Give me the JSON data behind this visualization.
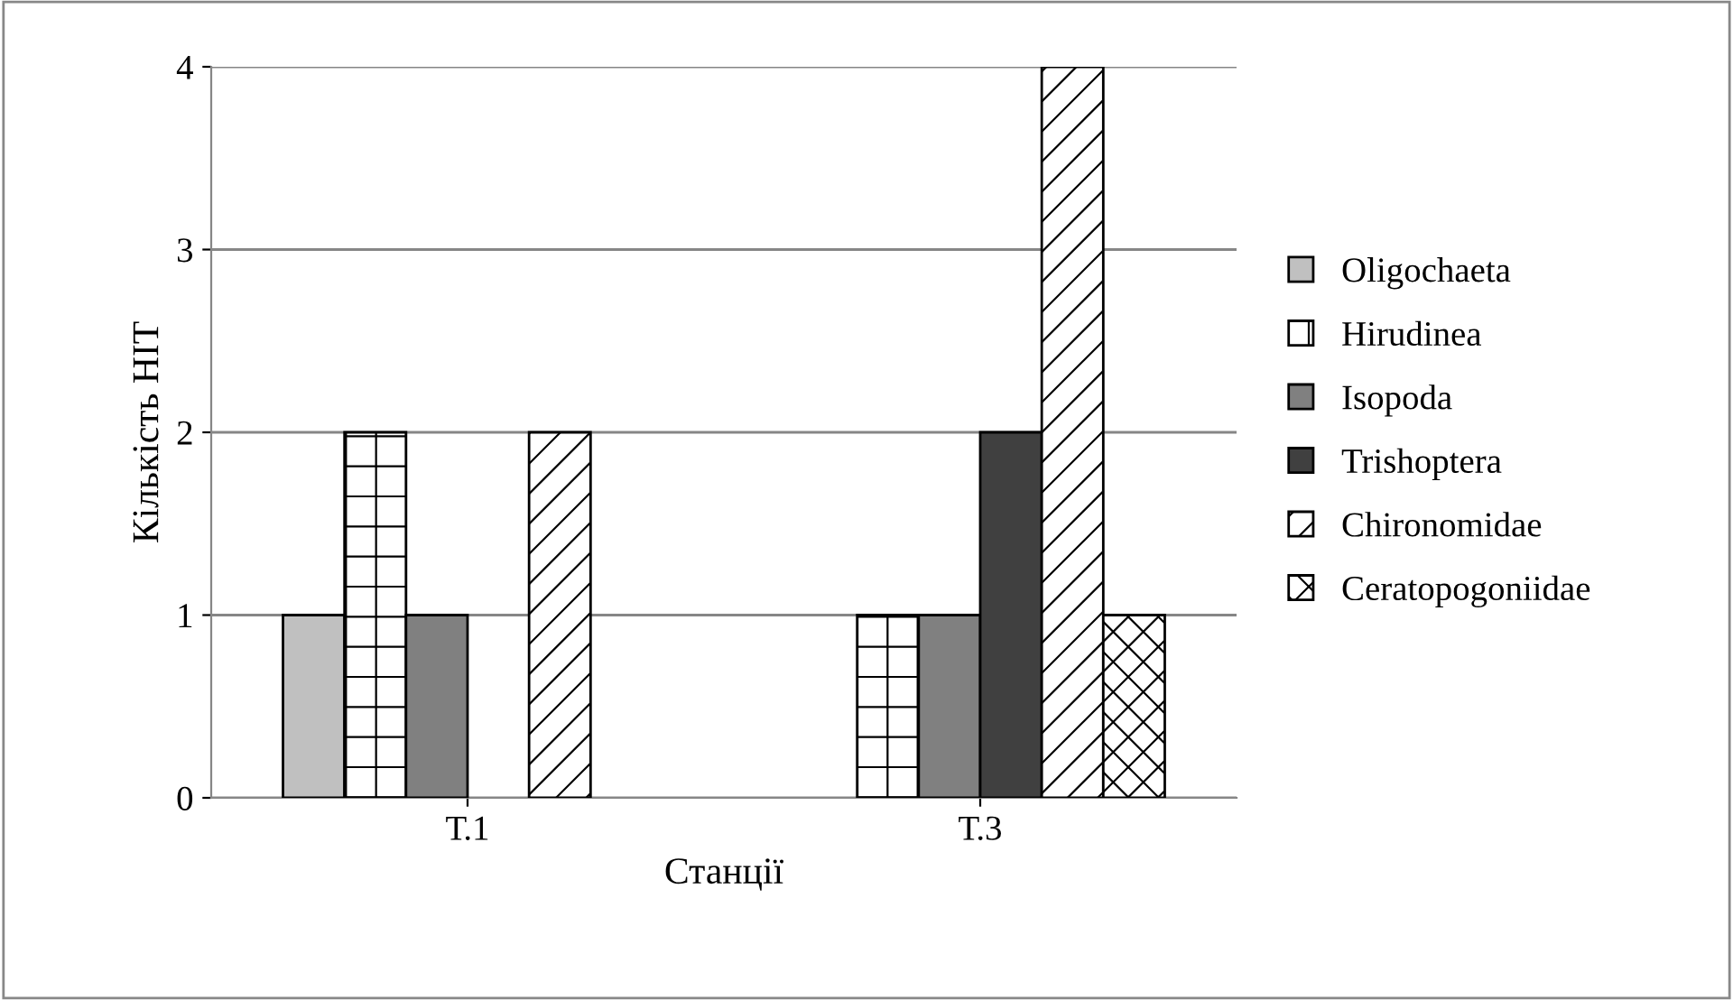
{
  "chart_data": {
    "type": "bar",
    "xlabel": "Станції",
    "ylabel": "Кількість НІТ",
    "categories": [
      "Т.1",
      "Т.3"
    ],
    "series": [
      {
        "name": "Oligochaeta",
        "color": "#c0c0c0",
        "values": [
          1,
          0
        ]
      },
      {
        "name": "Hirudinea",
        "color": "#ffffff",
        "values": [
          2,
          1
        ]
      },
      {
        "name": "Isopoda",
        "color": "#808080",
        "values": [
          1,
          1
        ]
      },
      {
        "name": "Trishoptera",
        "color": "#404040",
        "values": [
          0,
          2
        ]
      },
      {
        "name": "Chironomidae",
        "color": "#ffffff",
        "values": [
          2,
          4
        ]
      },
      {
        "name": "Ceratopogoniidae",
        "color": "#ffffff",
        "values": [
          0,
          1
        ]
      }
    ],
    "ylim": [
      0,
      4
    ],
    "yticks": [
      0,
      1,
      2,
      3,
      4
    ],
    "grid": "y",
    "legend": "right"
  }
}
